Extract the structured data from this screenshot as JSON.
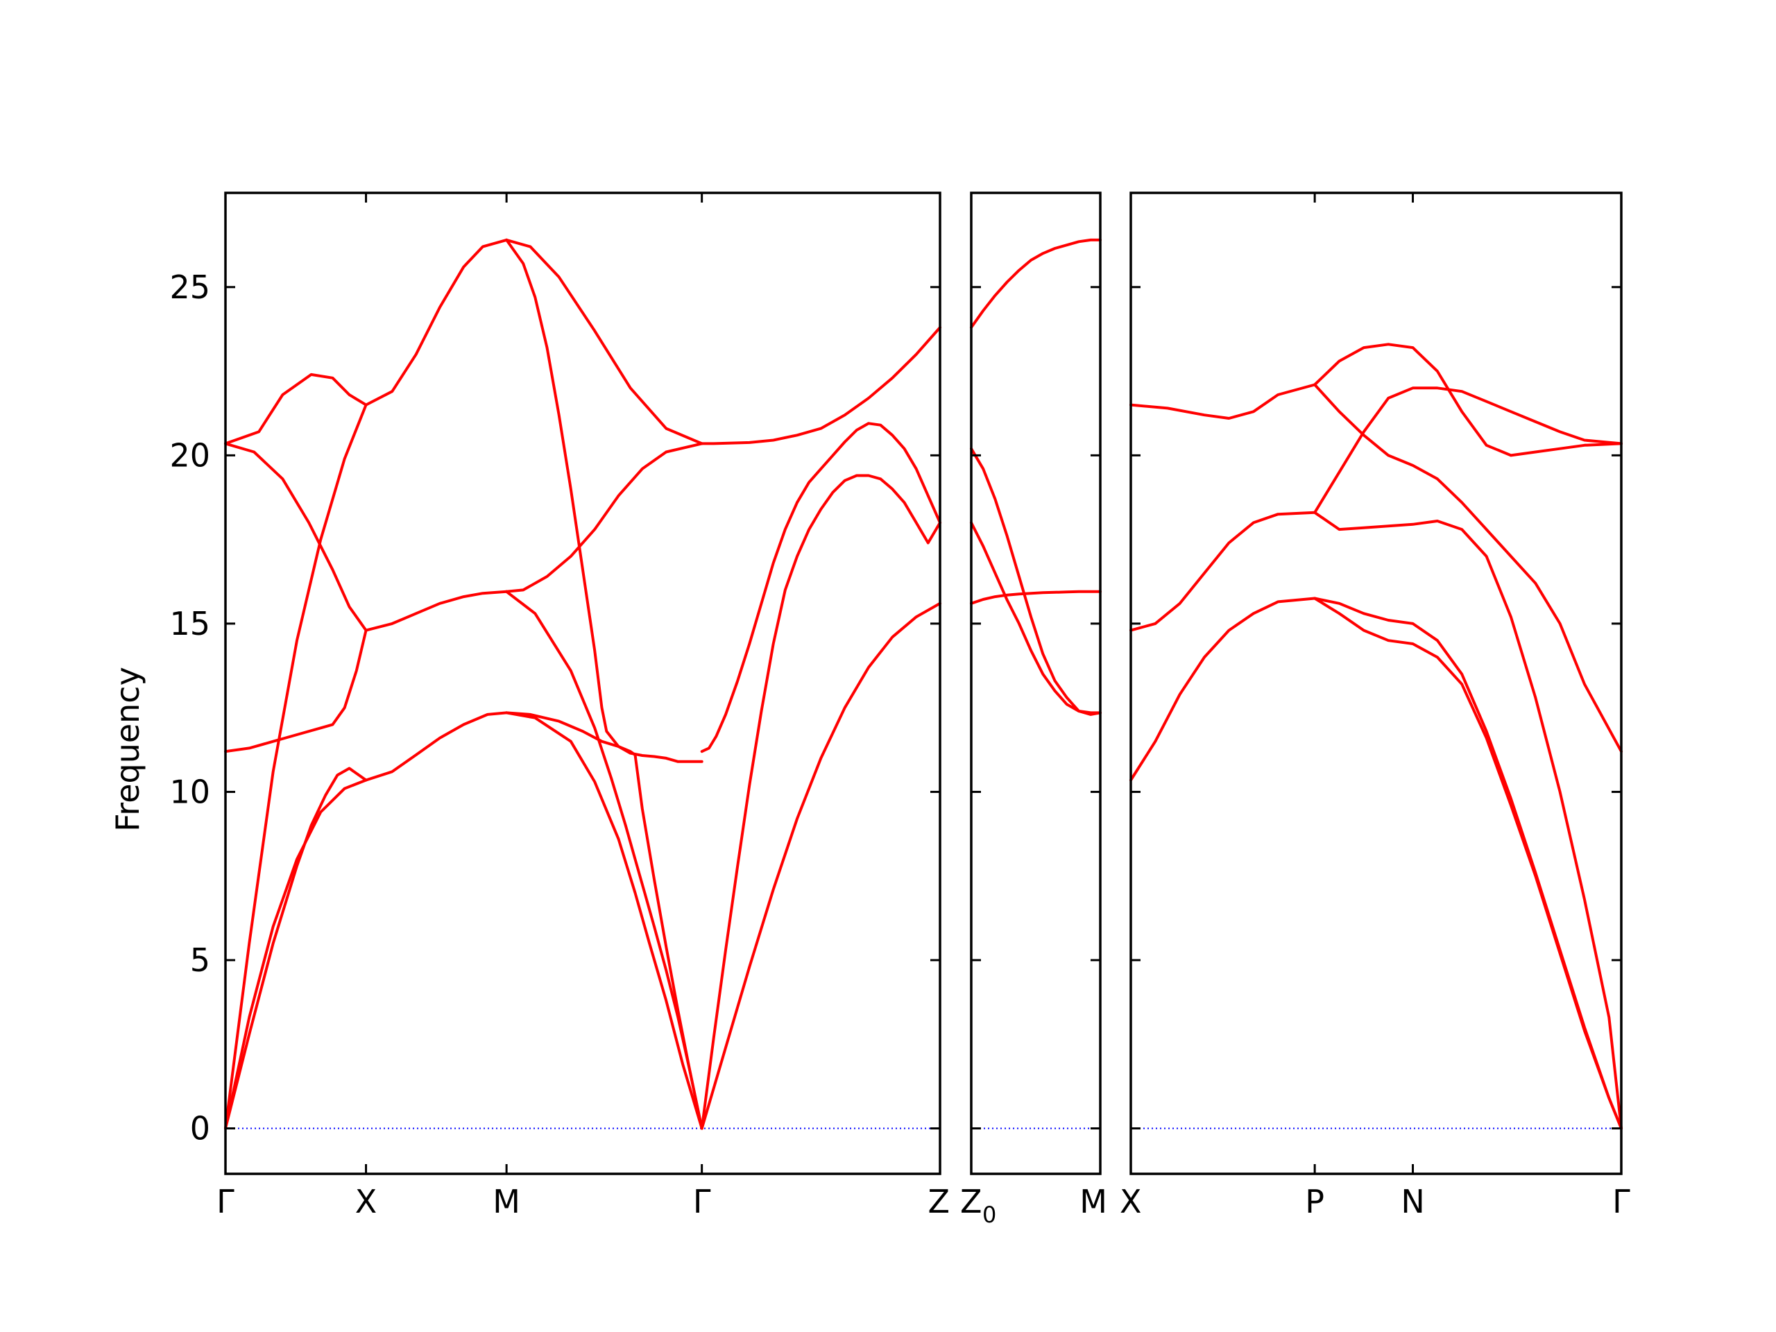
{
  "chart_data": {
    "type": "line",
    "ylabel": "Frequency",
    "ylim": [
      -1.35,
      27.8
    ],
    "yticks": [
      "0",
      "5",
      "10",
      "15",
      "20",
      "25"
    ],
    "ytick_values": [
      0,
      5,
      10,
      15,
      20,
      25
    ],
    "grid": false,
    "legend": "none",
    "band_color": "#ff0000",
    "zero_line_color": "#0000ff",
    "panels": [
      {
        "path_ticks": [
          {
            "x": 0,
            "label": "Γ"
          },
          {
            "x": 0.59,
            "label": "X"
          },
          {
            "x": 1.18,
            "label": "M"
          },
          {
            "x": 2.0,
            "label": "Γ"
          },
          {
            "x": 3.0,
            "label": "Z"
          }
        ],
        "xlim": [
          0,
          3.0
        ],
        "series": [
          {
            "x": [
              0,
              0.14,
              0.24,
              0.36,
              0.45,
              0.52,
              0.59,
              0.7,
              0.8,
              0.9,
              1.0,
              1.08,
              1.18
            ],
            "y": [
              20.35,
              20.7,
              21.8,
              22.4,
              22.3,
              21.8,
              21.5,
              21.9,
              23.0,
              24.4,
              25.6,
              26.2,
              26.4
            ]
          },
          {
            "x": [
              1.18,
              1.28,
              1.4,
              1.55,
              1.7,
              1.85,
              2.0
            ],
            "y": [
              26.4,
              26.2,
              25.3,
              23.7,
              22.0,
              20.8,
              20.35
            ]
          },
          {
            "x": [
              0,
              0.1,
              0.2,
              0.3,
              0.4,
              0.5,
              0.59
            ],
            "y": [
              0,
              5.5,
              10.6,
              14.5,
              17.5,
              19.9,
              21.5
            ]
          },
          {
            "x": [
              0,
              0.12,
              0.24,
              0.35,
              0.45,
              0.52,
              0.59
            ],
            "y": [
              20.35,
              20.1,
              19.3,
              18.0,
              16.6,
              15.5,
              14.8
            ]
          },
          {
            "x": [
              0.59,
              0.7,
              0.8,
              0.9,
              1.0,
              1.08,
              1.18
            ],
            "y": [
              14.8,
              15.0,
              15.3,
              15.6,
              15.8,
              15.9,
              15.95
            ]
          },
          {
            "x": [
              1.18,
              1.25,
              1.35,
              1.45,
              1.55,
              1.65,
              1.75,
              1.85,
              2.0
            ],
            "y": [
              15.95,
              16.0,
              16.4,
              17.0,
              17.8,
              18.8,
              19.6,
              20.1,
              20.35
            ]
          },
          {
            "x": [
              0,
              0.1,
              0.2,
              0.3,
              0.4,
              0.45,
              0.5,
              0.55,
              0.59
            ],
            "y": [
              11.2,
              11.3,
              11.5,
              11.7,
              11.9,
              12.0,
              12.5,
              13.6,
              14.8
            ]
          },
          {
            "x": [
              0,
              0.1,
              0.2,
              0.3,
              0.4,
              0.5,
              0.59
            ],
            "y": [
              0,
              3.3,
              6.0,
              8.0,
              9.4,
              10.1,
              10.35
            ]
          },
          {
            "x": [
              0,
              0.1,
              0.2,
              0.3,
              0.36,
              0.42,
              0.47,
              0.52,
              0.59
            ],
            "y": [
              0,
              2.8,
              5.5,
              7.8,
              9.0,
              9.9,
              10.5,
              10.7,
              10.35
            ]
          },
          {
            "x": [
              0.59,
              0.7,
              0.8,
              0.9,
              1.0,
              1.1,
              1.18
            ],
            "y": [
              10.35,
              10.6,
              11.1,
              11.6,
              12.0,
              12.3,
              12.35
            ]
          },
          {
            "x": [
              1.18,
              1.3,
              1.45,
              1.55,
              1.65,
              1.72,
              1.78,
              1.85,
              1.92,
              2.0
            ],
            "y": [
              12.35,
              12.2,
              11.5,
              10.3,
              8.6,
              7.0,
              5.5,
              3.8,
              1.9,
              0
            ]
          },
          {
            "x": [
              1.18,
              1.3,
              1.45,
              1.55,
              1.62,
              1.68,
              1.72,
              1.76,
              1.8,
              1.85,
              1.9,
              1.95,
              2.0
            ],
            "y": [
              15.95,
              15.3,
              13.6,
              11.9,
              10.4,
              9.0,
              8.0,
              7.0,
              6.0,
              4.7,
              3.3,
              1.7,
              0
            ]
          },
          {
            "x": [
              1.18,
              1.25,
              1.3,
              1.35,
              1.4,
              1.45,
              1.5,
              1.55,
              1.58,
              1.6,
              1.65,
              1.7,
              1.75,
              1.8,
              1.85,
              1.9,
              1.95,
              2.0
            ],
            "y": [
              26.4,
              25.7,
              24.7,
              23.2,
              21.2,
              19.0,
              16.6,
              14.2,
              12.5,
              11.8,
              11.35,
              11.15,
              11.08,
              11.05,
              11.0,
              10.9,
              10.9,
              10.9
            ]
          },
          {
            "x": [
              1.18,
              1.28,
              1.4,
              1.5,
              1.58,
              1.65,
              1.7,
              1.72,
              1.75,
              1.8,
              1.85,
              1.9,
              1.95,
              2.0
            ],
            "y": [
              12.35,
              12.3,
              12.1,
              11.8,
              11.5,
              11.35,
              11.2,
              11.1,
              9.5,
              7.4,
              5.4,
              3.5,
              1.7,
              0
            ]
          },
          {
            "x": [
              2.0,
              2.05,
              2.1,
              2.2,
              2.3,
              2.4,
              2.5,
              2.6,
              2.7,
              2.8,
              2.9,
              3.0
            ],
            "y": [
              20.35,
              20.35,
              20.36,
              20.38,
              20.45,
              20.6,
              20.8,
              21.2,
              21.7,
              22.3,
              23.0,
              23.8
            ]
          },
          {
            "x": [
              2.0,
              2.03,
              2.06,
              2.1,
              2.15,
              2.2,
              2.25,
              2.3,
              2.35,
              2.4,
              2.45,
              2.5,
              2.55,
              2.6,
              2.65,
              2.7,
              2.75,
              2.8,
              2.85,
              2.9,
              2.95,
              3.0
            ],
            "y": [
              11.2,
              11.3,
              11.65,
              12.3,
              13.3,
              14.4,
              15.6,
              16.8,
              17.8,
              18.6,
              19.2,
              19.6,
              20.0,
              20.4,
              20.75,
              20.95,
              20.9,
              20.6,
              20.2,
              19.6,
              18.8,
              18.0
            ]
          },
          {
            "x": [
              2.0,
              2.05,
              2.1,
              2.15,
              2.2,
              2.25,
              2.3,
              2.35,
              2.4,
              2.45,
              2.5,
              2.55,
              2.6,
              2.65,
              2.7,
              2.75,
              2.8,
              2.85,
              2.9,
              2.95,
              3.0
            ],
            "y": [
              0,
              2.7,
              5.3,
              7.8,
              10.2,
              12.4,
              14.4,
              16.0,
              17.0,
              17.8,
              18.4,
              18.9,
              19.25,
              19.4,
              19.4,
              19.3,
              19.0,
              18.6,
              18.0,
              17.4,
              18.0
            ]
          },
          {
            "x": [
              2.0,
              2.1,
              2.2,
              2.3,
              2.4,
              2.5,
              2.6,
              2.7,
              2.8,
              2.9,
              3.0
            ],
            "y": [
              0,
              2.4,
              4.8,
              7.1,
              9.2,
              11.0,
              12.5,
              13.7,
              14.6,
              15.2,
              15.6
            ]
          }
        ]
      },
      {
        "path_ticks": [
          {
            "x": 0,
            "label": "Z"
          },
          {
            "x": 0.54,
            "label": "M"
          }
        ],
        "panel_start_label": "Z0",
        "xlim": [
          0,
          0.54
        ],
        "series": [
          {
            "x": [
              0,
              0.05,
              0.1,
              0.15,
              0.2,
              0.25,
              0.3,
              0.35,
              0.4,
              0.45,
              0.5,
              0.54
            ],
            "y": [
              23.8,
              24.3,
              24.75,
              25.15,
              25.5,
              25.8,
              26.0,
              26.15,
              26.25,
              26.35,
              26.4,
              26.4
            ]
          },
          {
            "x": [
              0,
              0.05,
              0.1,
              0.15,
              0.2,
              0.25,
              0.3,
              0.35,
              0.4,
              0.45,
              0.5,
              0.54
            ],
            "y": [
              15.6,
              15.72,
              15.8,
              15.85,
              15.88,
              15.9,
              15.92,
              15.93,
              15.94,
              15.95,
              15.95,
              15.95
            ]
          },
          {
            "x": [
              0,
              0.05,
              0.1,
              0.15,
              0.2,
              0.25,
              0.3,
              0.35,
              0.4,
              0.45,
              0.5,
              0.54
            ],
            "y": [
              20.2,
              19.6,
              18.7,
              17.6,
              16.4,
              15.2,
              14.1,
              13.3,
              12.8,
              12.4,
              12.3,
              12.35
            ]
          },
          {
            "x": [
              0,
              0.05,
              0.1,
              0.15,
              0.2,
              0.25,
              0.3,
              0.35,
              0.4,
              0.45,
              0.5,
              0.54
            ],
            "y": [
              18.0,
              17.3,
              16.5,
              15.7,
              15.0,
              14.2,
              13.5,
              13.0,
              12.6,
              12.4,
              12.35,
              12.35
            ]
          }
        ]
      },
      {
        "path_ticks": [
          {
            "x": 0,
            "label": "X"
          },
          {
            "x": 0.75,
            "label": "P"
          },
          {
            "x": 1.15,
            "label": "N"
          },
          {
            "x": 2.0,
            "label": "Γ"
          }
        ],
        "xlim": [
          0,
          2.0
        ],
        "series": [
          {
            "x": [
              0,
              0.15,
              0.3,
              0.4,
              0.5,
              0.6,
              0.75
            ],
            "y": [
              21.5,
              21.4,
              21.2,
              21.1,
              21.3,
              21.8,
              22.1
            ]
          },
          {
            "x": [
              0.75,
              0.85,
              0.95,
              1.05,
              1.15,
              1.25,
              1.35,
              1.45,
              1.55,
              1.65,
              1.75,
              1.85,
              2.0
            ],
            "y": [
              22.1,
              22.8,
              23.2,
              23.3,
              23.2,
              22.5,
              21.3,
              20.3,
              20.0,
              20.1,
              20.2,
              20.3,
              20.35
            ]
          },
          {
            "x": [
              0.75,
              0.85,
              0.95,
              1.05,
              1.15,
              1.25,
              1.35,
              1.45,
              1.55,
              1.65,
              1.75,
              1.85,
              2.0
            ],
            "y": [
              22.1,
              21.3,
              20.6,
              20.0,
              19.7,
              19.3,
              18.6,
              17.8,
              17.0,
              16.2,
              15.0,
              13.2,
              11.2
            ]
          },
          {
            "x": [
              0.75,
              0.85,
              0.95,
              1.05,
              1.15,
              1.25,
              1.35,
              1.45,
              1.55,
              1.65,
              1.75,
              1.85,
              2.0
            ],
            "y": [
              18.3,
              19.5,
              20.7,
              21.7,
              22.0,
              22.0,
              21.9,
              21.6,
              21.3,
              21.0,
              20.7,
              20.45,
              20.35
            ]
          },
          {
            "x": [
              0,
              0.1,
              0.2,
              0.3,
              0.4,
              0.5,
              0.6,
              0.75
            ],
            "y": [
              14.8,
              15.0,
              15.6,
              16.5,
              17.4,
              18.0,
              18.25,
              18.3
            ]
          },
          {
            "x": [
              0.75,
              0.85,
              0.95,
              1.05,
              1.15,
              1.25,
              1.35,
              1.45,
              1.55,
              1.65,
              1.75,
              1.85,
              1.95,
              2.0
            ],
            "y": [
              18.3,
              17.8,
              17.85,
              17.9,
              17.95,
              18.05,
              17.8,
              17.0,
              15.2,
              12.8,
              10.0,
              6.8,
              3.3,
              0
            ]
          },
          {
            "x": [
              0,
              0.1,
              0.2,
              0.3,
              0.4,
              0.5,
              0.6,
              0.75
            ],
            "y": [
              10.35,
              11.5,
              12.9,
              14.0,
              14.8,
              15.3,
              15.65,
              15.75
            ]
          },
          {
            "x": [
              0.75,
              0.85,
              0.95,
              1.05,
              1.15,
              1.25,
              1.35,
              1.45,
              1.55,
              1.65,
              1.75,
              1.85,
              1.95,
              2.0
            ],
            "y": [
              15.75,
              15.6,
              15.3,
              15.1,
              15.0,
              14.5,
              13.5,
              11.8,
              9.8,
              7.6,
              5.3,
              3.0,
              0.9,
              0
            ]
          },
          {
            "x": [
              0.75,
              0.85,
              0.95,
              1.05,
              1.15,
              1.25,
              1.35,
              1.45,
              1.55,
              1.65,
              1.75,
              1.85,
              1.95,
              2.0
            ],
            "y": [
              15.75,
              15.3,
              14.8,
              14.5,
              14.4,
              14.0,
              13.2,
              11.6,
              9.6,
              7.5,
              5.2,
              2.9,
              0.9,
              0
            ]
          }
        ]
      }
    ]
  }
}
